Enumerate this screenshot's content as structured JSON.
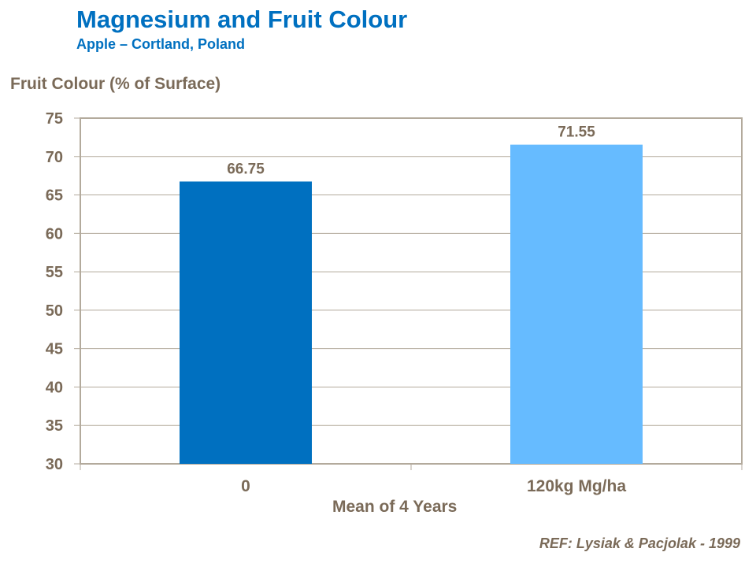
{
  "chart_data": {
    "type": "bar",
    "title": "Magnesium and Fruit Colour",
    "subtitle": "Apple – Cortland, Poland",
    "ylabel": "Fruit Colour (%  of Surface)",
    "xlabel": "Mean of 4 Years",
    "categories": [
      "0",
      "120kg Mg/ha"
    ],
    "values": [
      66.75,
      71.55
    ],
    "data_labels": [
      "66.75",
      "71.55"
    ],
    "colors": [
      "#0070c0",
      "#66bbff"
    ],
    "ylim": [
      30,
      75
    ],
    "yticks": [
      30,
      35,
      40,
      45,
      50,
      55,
      60,
      65,
      70,
      75
    ],
    "grid": true,
    "reference": "REF: Lysiak & Pacjolak - 1999"
  }
}
